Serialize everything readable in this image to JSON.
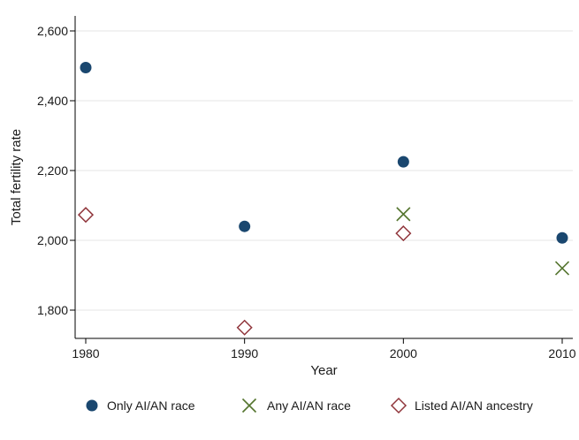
{
  "chart_data": {
    "type": "scatter",
    "xlabel": "Year",
    "ylabel": "Total fertility rate",
    "x_ticks": [
      "1980",
      "1990",
      "2000",
      "2010"
    ],
    "y_ticks": [
      "1,800",
      "2,000",
      "2,200",
      "2,400",
      "2,600"
    ],
    "xlim": [
      1980,
      2010
    ],
    "ylim": [
      1700,
      2640
    ],
    "grid": "horizontal",
    "legend_position": "bottom",
    "series": [
      {
        "name": "Only AI/AN race",
        "marker": "circle",
        "color": "#1a476f",
        "points": [
          {
            "x": 1980,
            "y": 2495
          },
          {
            "x": 1990,
            "y": 2040
          },
          {
            "x": 2000,
            "y": 2225
          },
          {
            "x": 2010,
            "y": 2007
          }
        ]
      },
      {
        "name": "Any AI/AN race",
        "marker": "x",
        "color": "#55752f",
        "points": [
          {
            "x": 2000,
            "y": 2075
          },
          {
            "x": 2010,
            "y": 1920
          }
        ]
      },
      {
        "name": "Listed AI/AN ancestry",
        "marker": "diamond",
        "color": "#90353b",
        "points": [
          {
            "x": 1980,
            "y": 2073
          },
          {
            "x": 1990,
            "y": 1750
          },
          {
            "x": 2000,
            "y": 2020
          }
        ]
      }
    ]
  }
}
